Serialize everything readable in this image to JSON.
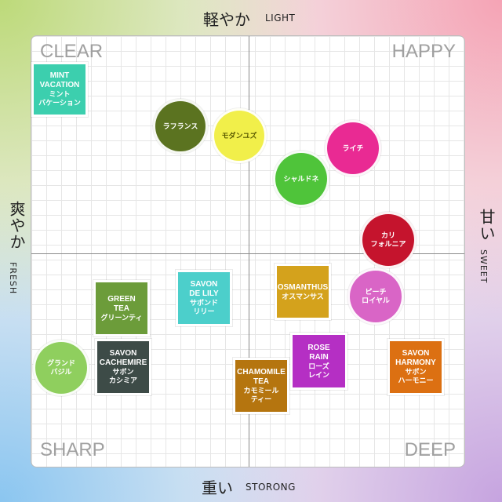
{
  "axes": {
    "top": {
      "jp": "軽やか",
      "en": "LIGHT"
    },
    "bottom": {
      "jp": "重い",
      "en": "STORONG"
    },
    "left": {
      "jp": "爽やか",
      "en": "FRESH"
    },
    "right": {
      "jp": "甘い",
      "en": "SWEET"
    }
  },
  "quadrants": {
    "top_left": "CLEAR",
    "top_right": "HAPPY",
    "bottom_left": "SHARP",
    "bottom_right": "DEEP"
  },
  "items": [
    {
      "id": "mint-vacation",
      "lines": [
        "MINT",
        "VACATION",
        "ミント",
        "バケーション"
      ],
      "color": "#3ccfae"
    },
    {
      "id": "la-france",
      "lines": [
        "ラフランス"
      ],
      "color": "#5b7320"
    },
    {
      "id": "modern-yuzu",
      "lines": [
        "モダンユズ"
      ],
      "color": "#f1ef4a"
    },
    {
      "id": "lychee",
      "lines": [
        "ライチ"
      ],
      "color": "#e92a93"
    },
    {
      "id": "chardonnay",
      "lines": [
        "シャルドネ"
      ],
      "color": "#4fc43a"
    },
    {
      "id": "california",
      "lines": [
        "カリ",
        "フォルニア"
      ],
      "color": "#c5142d"
    },
    {
      "id": "peach-royal",
      "lines": [
        "ピーチ",
        "ロイヤル"
      ],
      "color": "#d965c6"
    },
    {
      "id": "osmanthus",
      "lines": [
        "OSMANTHUS",
        "オスマンサス"
      ],
      "color": "#d4a21c"
    },
    {
      "id": "savon-de-lily",
      "lines": [
        "SAVON",
        "DE LILY",
        "サボンド",
        "リリー"
      ],
      "color": "#4ccfcb"
    },
    {
      "id": "green-tea",
      "lines": [
        "GREEN",
        "TEA",
        "グリーンティ"
      ],
      "color": "#6c9c3a"
    },
    {
      "id": "savon-cachemire",
      "lines": [
        "SAVON",
        "CACHEMIRE",
        "サボン",
        "カシミア"
      ],
      "color": "#3d4b47"
    },
    {
      "id": "grand-basil",
      "lines": [
        "グランド",
        "バジル"
      ],
      "color": "#8fcf5e"
    },
    {
      "id": "rose-rain",
      "lines": [
        "ROSE",
        "RAIN",
        "ローズ",
        "レイン"
      ],
      "color": "#b52fc4"
    },
    {
      "id": "chamomile-tea",
      "lines": [
        "CHAMOMILE",
        "TEA",
        "カモミール",
        "ティー"
      ],
      "color": "#b5750f"
    },
    {
      "id": "savon-harmony",
      "lines": [
        "SAVON",
        "HARMONY",
        "サボン",
        "ハーモニー"
      ],
      "color": "#dc7012"
    }
  ]
}
